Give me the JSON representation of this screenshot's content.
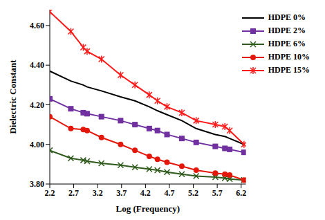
{
  "chart_data": {
    "type": "line",
    "x_label": "Log (Frequency)",
    "y_label": "Dielectric Constant",
    "x": [
      2.2,
      2.64,
      2.9,
      2.98,
      3.28,
      3.68,
      3.98,
      4.28,
      4.45,
      4.65,
      4.96,
      5.26,
      5.66,
      5.86,
      5.96,
      6.26
    ],
    "xlim": [
      2.2,
      6.3
    ],
    "xticks": [
      2.2,
      2.7,
      3.2,
      3.7,
      4.2,
      4.7,
      5.2,
      5.7,
      6.2
    ],
    "ylim": [
      3.8,
      4.68
    ],
    "yticks": [
      {
        "value": 3.8,
        "label": "3.80"
      },
      {
        "value": 4.0,
        "label": "4.00"
      },
      {
        "value": 4.2,
        "label": "4.20"
      },
      {
        "value": 4.4,
        "label": "4.40"
      },
      {
        "value": 4.6,
        "label": "4.60"
      }
    ],
    "grid": false,
    "legend": "upper right",
    "series": [
      {
        "name": "HDPE 0%",
        "color": "#000000",
        "marker": "none",
        "values": [
          4.37,
          4.32,
          4.3,
          4.29,
          4.27,
          4.24,
          4.22,
          4.19,
          4.17,
          4.15,
          4.12,
          4.08,
          4.05,
          4.04,
          4.03,
          4.0
        ]
      },
      {
        "name": "HDPE 2%",
        "color": "#7030a0",
        "marker": "square",
        "values": [
          4.23,
          4.18,
          4.16,
          4.155,
          4.14,
          4.12,
          4.1,
          4.08,
          4.07,
          4.05,
          4.03,
          4.01,
          3.99,
          3.98,
          3.975,
          3.96
        ]
      },
      {
        "name": "HDPE 6%",
        "color": "#2e5a1c",
        "marker": "x",
        "values": [
          3.97,
          3.93,
          3.92,
          3.915,
          3.905,
          3.895,
          3.885,
          3.875,
          3.87,
          3.86,
          3.85,
          3.84,
          3.835,
          3.83,
          3.825,
          3.82
        ]
      },
      {
        "name": "HDPE 10%",
        "color": "#e3170a",
        "marker": "circle",
        "values": [
          4.14,
          4.08,
          4.075,
          4.07,
          4.035,
          4.0,
          3.97,
          3.94,
          3.925,
          3.91,
          3.89,
          3.87,
          3.855,
          3.85,
          3.845,
          3.82
        ]
      },
      {
        "name": "HDPE 15%",
        "color": "#ff1a1a",
        "marker": "star",
        "values": [
          4.67,
          4.57,
          4.49,
          4.47,
          4.43,
          4.35,
          4.3,
          4.25,
          4.22,
          4.19,
          4.16,
          4.12,
          4.1,
          4.09,
          4.07,
          4.0
        ]
      }
    ]
  }
}
